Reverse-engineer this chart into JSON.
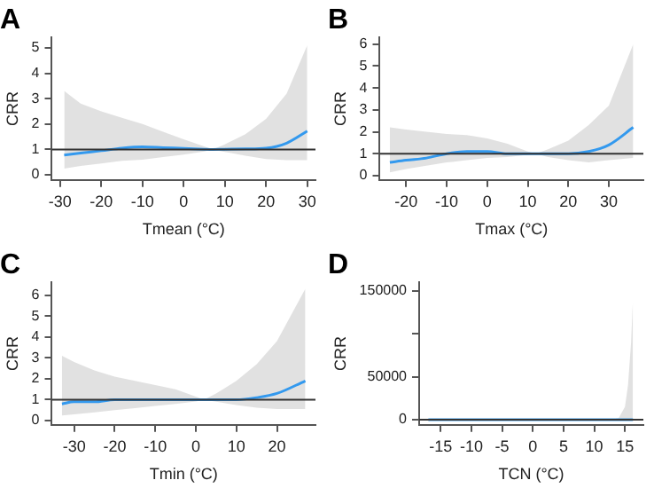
{
  "chart_data": [
    {
      "type": "line",
      "title": "A",
      "xlabel": "Tmean (°C)",
      "ylabel": "CRR",
      "x": [
        -29,
        -25,
        -20,
        -15,
        -10,
        -5,
        0,
        5,
        7,
        10,
        15,
        20,
        25,
        30
      ],
      "series": [
        {
          "color": "#3399ee",
          "values": [
            0.78,
            0.86,
            0.95,
            1.05,
            1.1,
            1.07,
            1.04,
            1.01,
            1.0,
            1.01,
            1.02,
            1.05,
            1.25,
            1.72
          ],
          "lower": [
            0.25,
            0.35,
            0.45,
            0.55,
            0.6,
            0.7,
            0.8,
            0.92,
            1.0,
            0.9,
            0.75,
            0.62,
            0.58,
            0.58
          ],
          "upper": [
            3.3,
            2.8,
            2.5,
            2.25,
            2.0,
            1.7,
            1.4,
            1.12,
            1.0,
            1.2,
            1.6,
            2.2,
            3.2,
            5.1
          ]
        }
      ],
      "xlim": [
        -32,
        32
      ],
      "xticks": [
        -30,
        -20,
        -10,
        0,
        10,
        20,
        30
      ],
      "ylim": [
        -0.2,
        5.4
      ],
      "yticks": [
        0,
        1,
        2,
        3,
        4,
        5
      ],
      "ref_lines": [
        {
          "axis": "y",
          "value": 1,
          "color": "#333333"
        }
      ]
    },
    {
      "type": "line",
      "title": "B",
      "xlabel": "Tmax (°C)",
      "ylabel": "CRR",
      "x": [
        -24,
        -20,
        -15,
        -10,
        -5,
        0,
        5,
        10,
        12,
        15,
        20,
        25,
        30,
        36
      ],
      "series": [
        {
          "color": "#3399ee",
          "values": [
            0.6,
            0.7,
            0.8,
            1.0,
            1.1,
            1.1,
            1.0,
            1.0,
            1.0,
            1.0,
            1.0,
            1.1,
            1.4,
            2.2
          ],
          "lower": [
            0.15,
            0.3,
            0.45,
            0.6,
            0.7,
            0.8,
            0.85,
            0.95,
            1.0,
            0.85,
            0.7,
            0.6,
            0.7,
            0.8
          ],
          "upper": [
            2.2,
            2.1,
            2.0,
            1.9,
            1.85,
            1.7,
            1.45,
            1.1,
            1.0,
            1.2,
            1.6,
            2.3,
            3.2,
            6.0
          ]
        }
      ],
      "xlim": [
        -26.5,
        38.5
      ],
      "xticks": [
        -20,
        -10,
        0,
        10,
        20,
        30
      ],
      "ylim": [
        -0.2,
        6.3
      ],
      "yticks": [
        0,
        1,
        2,
        3,
        4,
        5,
        6
      ],
      "ref_lines": [
        {
          "axis": "y",
          "value": 1,
          "color": "#333333"
        }
      ]
    },
    {
      "type": "line",
      "title": "C",
      "xlabel": "Tmin (°C)",
      "ylabel": "CRR",
      "x": [
        -33,
        -30,
        -25,
        -20,
        -15,
        -10,
        -5,
        0,
        2,
        5,
        10,
        15,
        20,
        27
      ],
      "series": [
        {
          "color": "#3399ee",
          "values": [
            0.8,
            0.9,
            0.9,
            1.0,
            1.0,
            1.0,
            1.0,
            1.0,
            1.0,
            1.0,
            1.0,
            1.1,
            1.3,
            1.9
          ],
          "lower": [
            0.25,
            0.3,
            0.4,
            0.5,
            0.6,
            0.7,
            0.8,
            0.92,
            1.0,
            0.9,
            0.75,
            0.62,
            0.55,
            0.55
          ],
          "upper": [
            3.1,
            2.8,
            2.4,
            2.1,
            1.9,
            1.7,
            1.5,
            1.15,
            1.0,
            1.3,
            1.9,
            2.7,
            3.8,
            6.3
          ]
        }
      ],
      "xlim": [
        -35.5,
        29.5
      ],
      "xticks": [
        -30,
        -20,
        -10,
        0,
        10,
        20
      ],
      "ylim": [
        -0.2,
        6.6
      ],
      "yticks": [
        0,
        1,
        2,
        3,
        4,
        5,
        6
      ],
      "ref_lines": [
        {
          "axis": "y",
          "value": 1,
          "color": "#333333"
        }
      ]
    },
    {
      "type": "line",
      "title": "D",
      "xlabel": "TCN (°C)",
      "ylabel": "CRR",
      "x": [
        -17,
        -10,
        0,
        10,
        13,
        14,
        15,
        15.5,
        16,
        16.3
      ],
      "series": [
        {
          "color": "#3399ee",
          "values": [
            1,
            1,
            1,
            1,
            1,
            1,
            1,
            1,
            1,
            1
          ],
          "lower": [
            0,
            0,
            0,
            0,
            0,
            0,
            0,
            0,
            0,
            0
          ],
          "upper": [
            1,
            1,
            1,
            1,
            100,
            2000,
            15000,
            40000,
            90000,
            140000
          ]
        }
      ],
      "xlim": [
        -18.5,
        18
      ],
      "xticks": [
        -15,
        -10,
        -5,
        0,
        5,
        10,
        15
      ],
      "ylim": [
        -6000,
        160000
      ],
      "yticks": [
        0,
        50000,
        {
          "value": 100000,
          "label": null
        },
        150000
      ],
      "ref_lines": [
        {
          "axis": "y",
          "value": 1,
          "color": "#333333"
        }
      ]
    }
  ]
}
